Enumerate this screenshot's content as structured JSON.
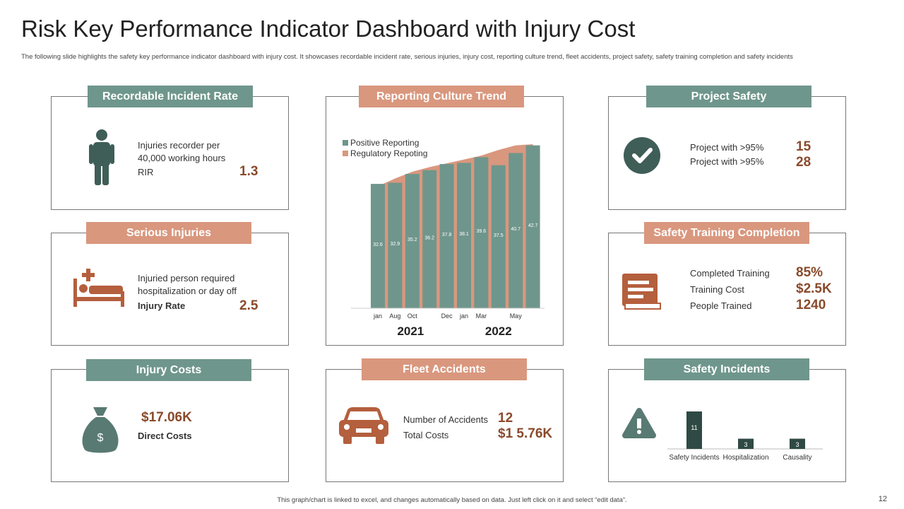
{
  "title": "Risk Key Performance Indicator Dashboard with Injury Cost",
  "subtitle": "The following slide highlights the  safety key performance indicator dashboard with injury cost. It showcases recordable incident rate, serious injuries, injury cost, reporting culture trend, fleet accidents, project safety, safety training completion and safety incidents",
  "footer": "This graph/chart is linked to excel, and changes automatically based on data. Just left click on it and select “edit data”.",
  "page_number": "12",
  "recordable_incident_rate": {
    "heading": "Recordable Incident Rate",
    "description": "Injuries recorder per 40,000 working hours",
    "metric_label": "RIR",
    "metric_value": "1.3"
  },
  "serious_injuries": {
    "heading": "Serious Injuries",
    "description": "Injuried person required hospitalization or day off",
    "metric_label": "Injury Rate",
    "metric_value": "2.5"
  },
  "injury_costs": {
    "heading": "Injury Costs",
    "value": "$17.06K",
    "label": "Direct Costs"
  },
  "project_safety": {
    "heading": "Project Safety",
    "rows": [
      {
        "label": "Project with >95%",
        "value": "15"
      },
      {
        "label": "Project with >95%",
        "value": "28"
      }
    ]
  },
  "safety_training_completion": {
    "heading": "Safety Training Completion",
    "rows": [
      {
        "label": "Completed Training",
        "value": "85%"
      },
      {
        "label": "Training Cost",
        "value": "$2.5K"
      },
      {
        "label": "People Trained",
        "value": "1240"
      }
    ]
  },
  "fleet_accidents": {
    "heading": "Fleet Accidents",
    "rows": [
      {
        "label": "Number of Accidents",
        "value": "12"
      },
      {
        "label": "Total Costs",
        "value": "$1 5.76K"
      }
    ]
  },
  "chart_data": [
    {
      "type": "combo",
      "title": "Reporting Culture Trend",
      "categories": [
        "jan",
        "Aug",
        "Oct",
        null,
        "Dec",
        "jan",
        "Mar",
        null,
        "May",
        null
      ],
      "group_labels": [
        "2021",
        "2022"
      ],
      "series": [
        {
          "name": "Positive Reporting",
          "type": "bar",
          "color": "#6f968c",
          "values": [
            32.6,
            32.9,
            35.2,
            36.2,
            37.8,
            38.1,
            39.6,
            37.5,
            40.7,
            42.7
          ]
        },
        {
          "name": "Regulatory Repoting",
          "type": "area",
          "color": "#d9977e",
          "values": [
            32,
            34,
            35.8,
            37,
            38,
            39,
            40,
            41.5,
            42.7,
            43
          ]
        }
      ]
    },
    {
      "type": "bar",
      "title": "Safety Incidents",
      "categories": [
        "Safety Incidents",
        "Hospitalization",
        "Causality"
      ],
      "values": [
        11,
        3,
        3
      ],
      "color": "#2f4a44"
    }
  ]
}
